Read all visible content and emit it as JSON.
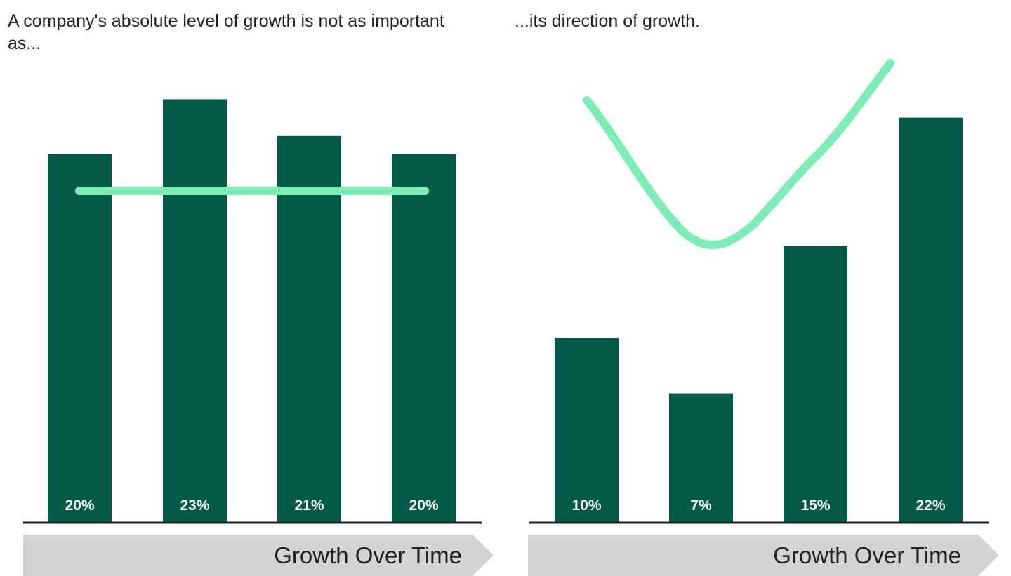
{
  "colors": {
    "bar": "#045A48",
    "trend": "#7EEDB5",
    "axis": "#222222",
    "arrow": "#D3D3D3",
    "label": "#FFFFFF"
  },
  "chart_data": [
    {
      "type": "bar",
      "title": "A company's absolute level of growth is not as important as...",
      "xlabel": "Growth Over Time",
      "ylabel": "",
      "categories": [
        "",
        "",
        "",
        ""
      ],
      "values": [
        20,
        23,
        21,
        20
      ],
      "value_labels": [
        "20%",
        "23%",
        "21%",
        "20%"
      ],
      "ylim": [
        0,
        25
      ],
      "grid": false,
      "trend": "flat"
    },
    {
      "type": "bar",
      "title": "...its direction of growth.",
      "xlabel": "Growth Over Time",
      "ylabel": "",
      "categories": [
        "",
        "",
        "",
        ""
      ],
      "values": [
        10,
        7,
        15,
        22
      ],
      "value_labels": [
        "10%",
        "7%",
        "15%",
        "22%"
      ],
      "ylim": [
        0,
        25
      ],
      "grid": false,
      "trend": "u-shaped"
    }
  ]
}
